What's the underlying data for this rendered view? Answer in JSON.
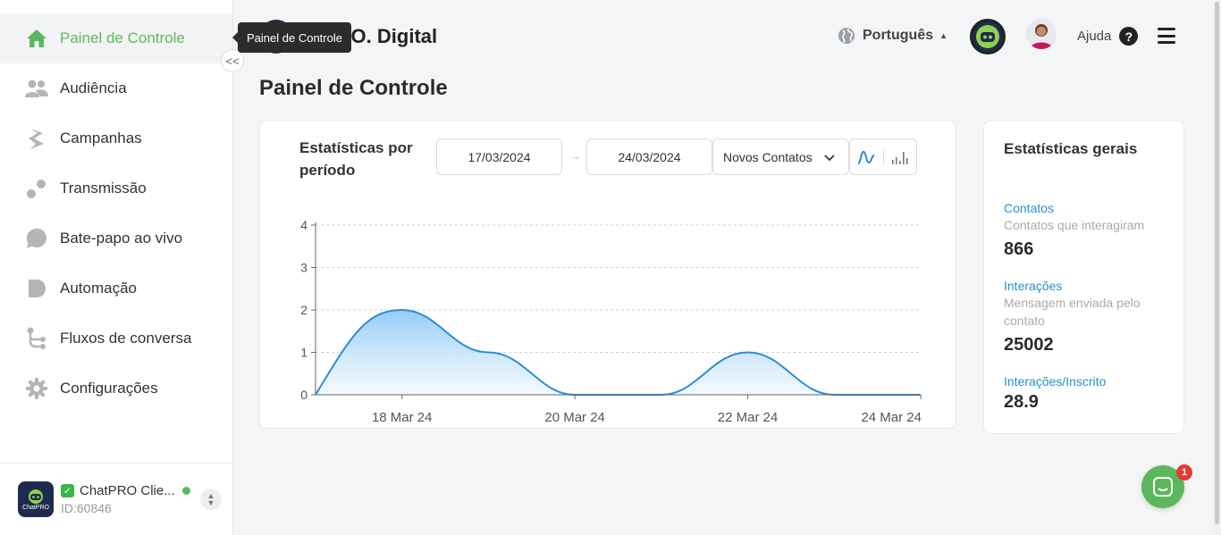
{
  "sidebar": {
    "items": [
      {
        "label": "Painel de Controle",
        "icon": "home-icon"
      },
      {
        "label": "Audiência",
        "icon": "users-icon"
      },
      {
        "label": "Campanhas",
        "icon": "campaigns-icon"
      },
      {
        "label": "Transmissão",
        "icon": "broadcast-icon"
      },
      {
        "label": "Bate-papo ao vivo",
        "icon": "chat-bubble-icon"
      },
      {
        "label": "Automação",
        "icon": "automation-icon"
      },
      {
        "label": "Fluxos de conversa",
        "icon": "flow-icon"
      },
      {
        "label": "Configurações",
        "icon": "gear-icon"
      }
    ],
    "collapse_label": "<<",
    "account": {
      "name": "ChatPRO Clie...",
      "id": "ID:60846",
      "logo_text": "ChatPRO"
    }
  },
  "tooltip": "Painel de Controle",
  "header": {
    "brand": "PRO. Digital",
    "language": "Português",
    "help": "Ajuda",
    "help_glyph": "?"
  },
  "page_title": "Painel de Controle",
  "period_stats": {
    "title": "Estatísticas por período",
    "start_date": "17/03/2024",
    "end_date": "24/03/2024",
    "metric": "Novos Contatos"
  },
  "chart_data": {
    "type": "area",
    "x": [
      "17 Mar 24",
      "18 Mar 24",
      "19 Mar 24",
      "20 Mar 24",
      "21 Mar 24",
      "22 Mar 24",
      "23 Mar 24",
      "24 Mar 24"
    ],
    "values": [
      0,
      2,
      1,
      0,
      0,
      1,
      0,
      0
    ],
    "tick_labels": [
      "18 Mar 24",
      "20 Mar 24",
      "22 Mar 24",
      "24 Mar 24"
    ],
    "y_ticks": [
      "0",
      "1",
      "2",
      "3",
      "4"
    ],
    "ylim": [
      0,
      4
    ],
    "grid": true,
    "color": "#2a8fd1"
  },
  "general_stats": {
    "title": "Estatísticas gerais",
    "items": [
      {
        "label": "Contatos",
        "desc": "Contatos que interagiram",
        "value": "866"
      },
      {
        "label": "Interações",
        "desc": "Mensagem enviada pelo contato",
        "value": "25002"
      },
      {
        "label": "Interações/Inscrito",
        "desc": "",
        "value": "28.9"
      }
    ]
  },
  "chat_widget": {
    "badge": "1"
  },
  "colors": {
    "accent": "#5cb85c",
    "link": "#2a8fd1",
    "dark": "#1f2a4f"
  }
}
